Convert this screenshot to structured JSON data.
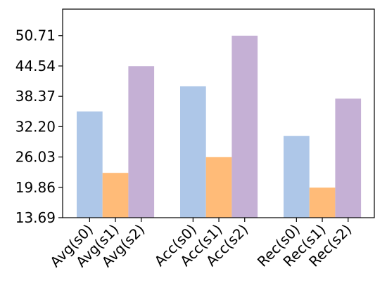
{
  "chart_data": {
    "type": "bar",
    "title": "",
    "xlabel": "",
    "ylabel": "",
    "ylim": [
      13.69,
      56.1
    ],
    "yticks": [
      "13.69",
      "19.86",
      "26.03",
      "32.20",
      "38.37",
      "44.54",
      "50.71"
    ],
    "grid": false,
    "legend": "none",
    "categories": [
      "Avg",
      "Acc",
      "Rec"
    ],
    "tick_labels": [
      "Avg(s0)",
      "Avg(s1)",
      "Avg(s2)",
      "Acc(s0)",
      "Acc(s1)",
      "Acc(s2)",
      "Rec(s0)",
      "Rec(s1)",
      "Rec(s2)"
    ],
    "series": [
      {
        "key": "s0",
        "color": "#aec7e8",
        "values": [
          35.3,
          40.4,
          30.3
        ]
      },
      {
        "key": "s1",
        "color": "#ffbb78",
        "values": [
          22.8,
          26.0,
          19.8
        ]
      },
      {
        "key": "s2",
        "color": "#c5b0d5",
        "values": [
          44.5,
          50.7,
          37.9
        ]
      }
    ]
  }
}
